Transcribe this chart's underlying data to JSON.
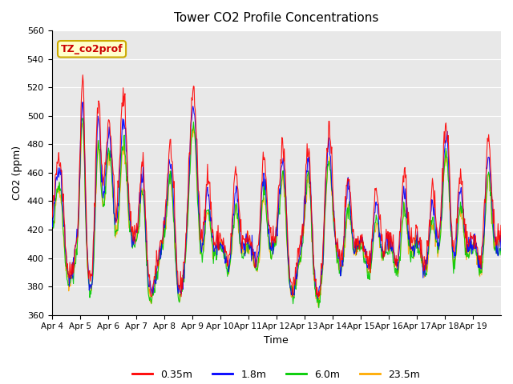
{
  "title": "Tower CO2 Profile Concentrations",
  "xlabel": "Time",
  "ylabel": "CO2 (ppm)",
  "ylim": [
    360,
    560
  ],
  "yticks": [
    360,
    380,
    400,
    420,
    440,
    460,
    480,
    500,
    520,
    540,
    560
  ],
  "xtick_labels": [
    "Apr 4",
    "Apr 5",
    "Apr 6",
    "Apr 7",
    "Apr 8",
    "Apr 9",
    "Apr 10",
    "Apr 11",
    "Apr 12",
    "Apr 13",
    "Apr 14",
    "Apr 15",
    "Apr 16",
    "Apr 17",
    "Apr 18",
    "Apr 19"
  ],
  "series_labels": [
    "0.35m",
    "1.8m",
    "6.0m",
    "23.5m"
  ],
  "series_colors": [
    "#ff0000",
    "#0000ff",
    "#00cc00",
    "#ffaa00"
  ],
  "background_color": "#e8e8e8",
  "annotation_text": "TZ_co2prof",
  "annotation_bg": "#ffffcc",
  "annotation_border": "#ccaa00",
  "n_days": 16,
  "points_per_day": 48
}
